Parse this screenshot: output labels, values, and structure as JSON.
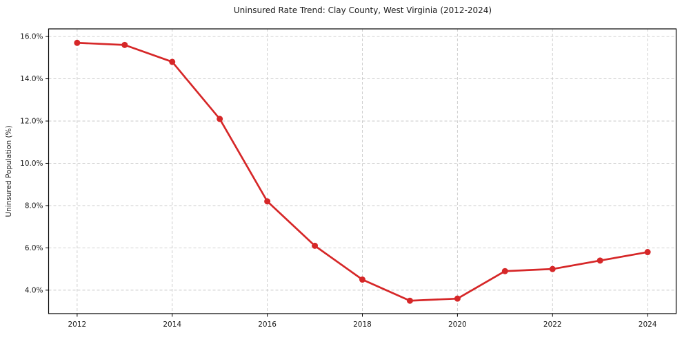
{
  "figure": {
    "title": "Uninsured Rate Trend: Clay County, West Virginia (2012-2024)",
    "y_axis_label": "Uninsured Population (%)",
    "background_color": "#ffffff"
  },
  "chart_data": {
    "type": "line",
    "title": "Uninsured Rate Trend: Clay County, West Virginia (2012-2024)",
    "xlabel": "",
    "ylabel": "Uninsured Population (%)",
    "x": [
      2012,
      2013,
      2014,
      2015,
      2016,
      2017,
      2018,
      2019,
      2020,
      2021,
      2022,
      2023,
      2024
    ],
    "series": [
      {
        "name": "Uninsured rate",
        "values": [
          15.7,
          15.6,
          14.8,
          12.1,
          8.2,
          6.1,
          4.5,
          3.5,
          3.6,
          4.9,
          5.0,
          5.4,
          5.8
        ]
      }
    ],
    "xlim": [
      2011.4,
      2024.6
    ],
    "ylim": [
      2.89,
      16.36
    ],
    "xticks": [
      2012,
      2014,
      2016,
      2018,
      2020,
      2022,
      2024
    ],
    "xtick_labels": [
      "2012",
      "2014",
      "2016",
      "2018",
      "2020",
      "2022",
      "2024"
    ],
    "yticks": [
      4,
      6,
      8,
      10,
      12,
      14,
      16
    ],
    "ytick_labels": [
      "4.0%",
      "6.0%",
      "8.0%",
      "10.0%",
      "12.0%",
      "14.0%",
      "16.0%"
    ],
    "grid": true,
    "grid_style": "dashed",
    "legend_position": "none",
    "line_color": "#d62728",
    "marker": "circle",
    "marker_color": "#d62728",
    "grid_color": "#c9c9c9",
    "axis_color": "#000000"
  }
}
